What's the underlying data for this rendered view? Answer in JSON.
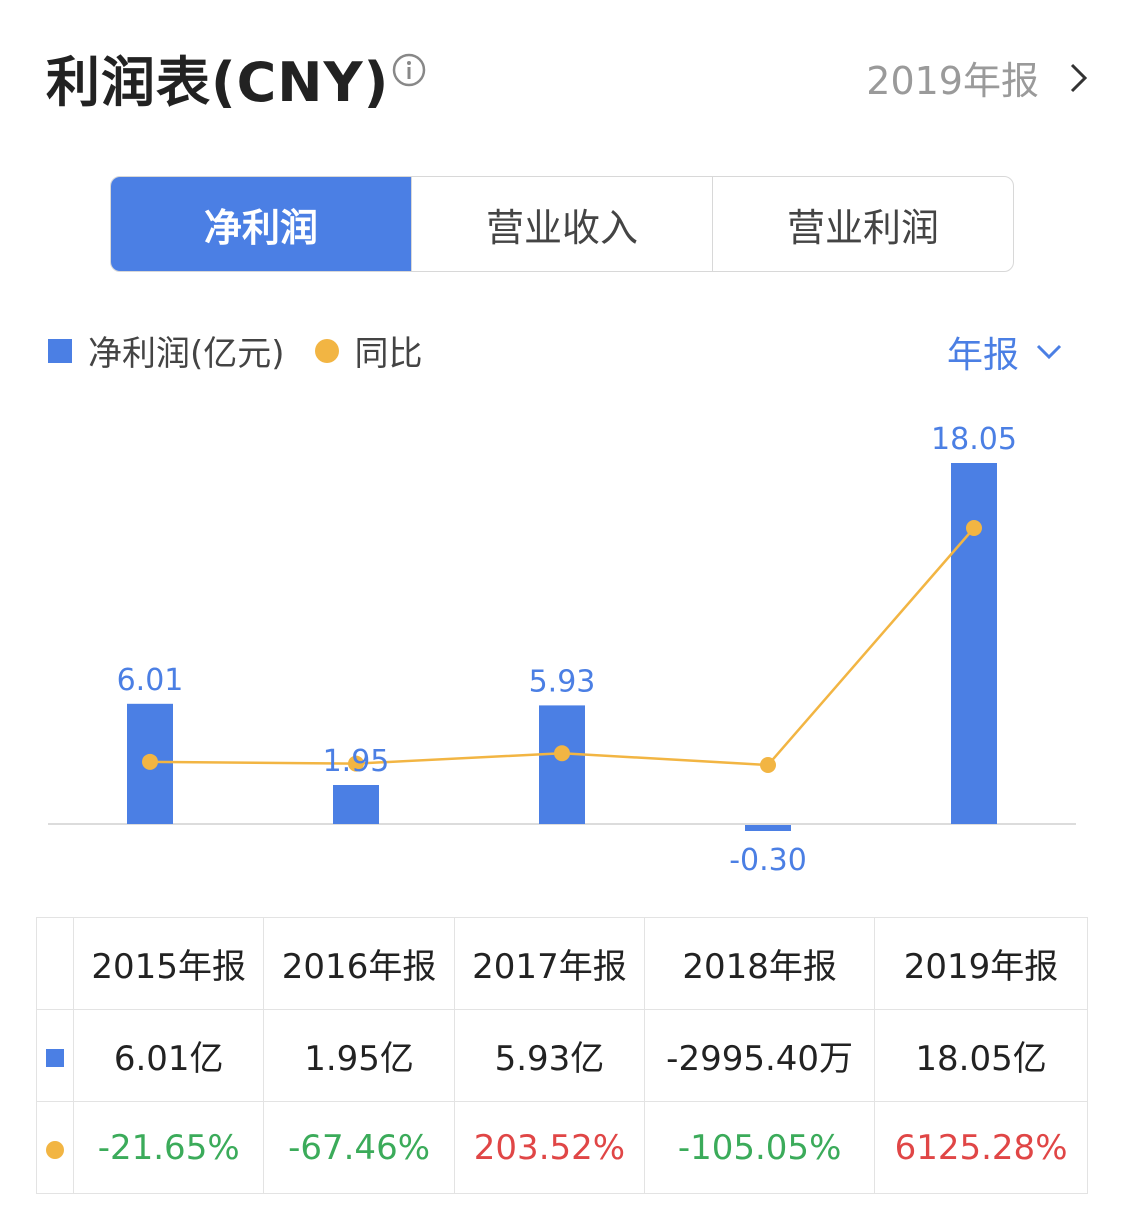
{
  "header": {
    "title": "利润表(CNY)",
    "report_label": "2019年报",
    "info_icon": "info-circle-icon",
    "arrow_icon": "chevron-right-icon"
  },
  "tabs": [
    {
      "label": "净利润",
      "active": true
    },
    {
      "label": "营业收入",
      "active": false
    },
    {
      "label": "营业利润",
      "active": false
    }
  ],
  "legend": {
    "bar_label": "净利润(亿元)",
    "line_label": "同比"
  },
  "period_selector": {
    "label": "年报",
    "icon": "chevron-down-icon"
  },
  "colors": {
    "bar": "#4b7fe4",
    "line": "#f2b543",
    "negative": "#3bab5a",
    "positive": "#e04646"
  },
  "chart_data": {
    "type": "bar",
    "categories": [
      "2015年报",
      "2016年报",
      "2017年报",
      "2018年报",
      "2019年报"
    ],
    "series": [
      {
        "name": "净利润(亿元)",
        "type": "bar",
        "values": [
          6.01,
          1.95,
          5.93,
          -0.3,
          18.05
        ],
        "labels": [
          "6.01",
          "1.95",
          "5.93",
          "-0.30",
          "18.05"
        ]
      },
      {
        "name": "同比",
        "type": "line",
        "values": [
          -21.65,
          -67.46,
          203.52,
          -105.05,
          6125.28
        ]
      }
    ],
    "legend_position": "top-left"
  },
  "table": {
    "headers": [
      "2015年报",
      "2016年报",
      "2017年报",
      "2018年报",
      "2019年报"
    ],
    "rows": [
      {
        "marker": "bar-series-marker",
        "cells": [
          "6.01亿",
          "1.95亿",
          "5.93亿",
          "-2995.40万",
          "18.05亿"
        ]
      },
      {
        "marker": "line-series-marker",
        "cells": [
          "-21.65%",
          "-67.46%",
          "203.52%",
          "-105.05%",
          "6125.28%"
        ]
      }
    ]
  }
}
